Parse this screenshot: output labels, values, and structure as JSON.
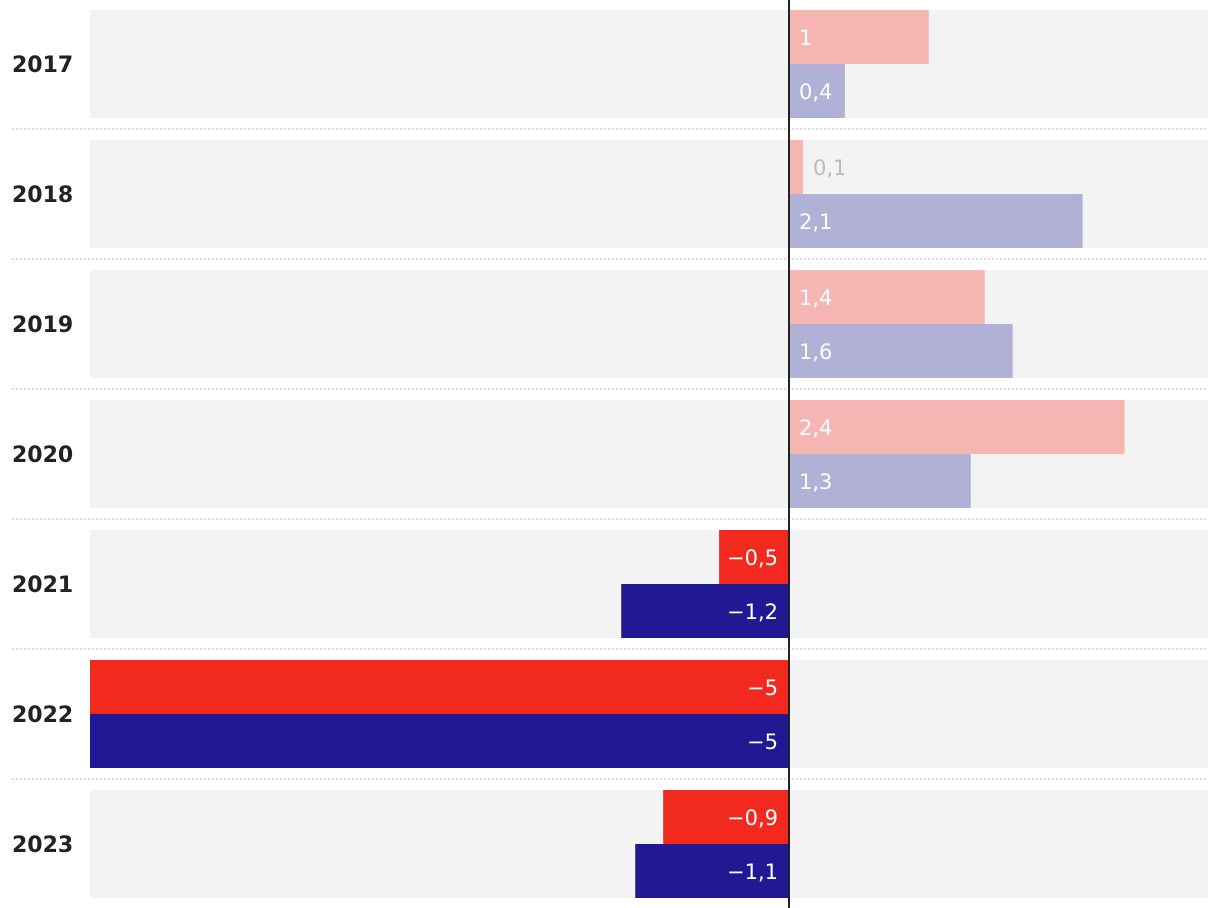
{
  "chart_data": {
    "type": "bar",
    "orientation": "horizontal",
    "categories": [
      "2017",
      "2018",
      "2019",
      "2020",
      "2021",
      "2022",
      "2023"
    ],
    "series": [
      {
        "values": [
          1,
          0.1,
          1.4,
          2.4,
          -0.5,
          -5,
          -0.9
        ],
        "labels": [
          "1",
          "0,1",
          "1,4",
          "2,4",
          "−0,5",
          "−5",
          "−0,9"
        ],
        "positive_color": "#f4b5b3",
        "negative_color": "#f2291f"
      },
      {
        "values": [
          0.4,
          2.1,
          1.6,
          1.3,
          -1.2,
          -5,
          -1.1
        ],
        "labels": [
          "0,4",
          "2,1",
          "1,6",
          "1,3",
          "−1,2",
          "−5",
          "−1,1"
        ],
        "positive_color": "#b1b0d6",
        "negative_color": "#201993"
      }
    ],
    "xlim": [
      -5,
      3
    ],
    "grid": false,
    "legend": "none",
    "colors": {
      "row_background": "#f3f3f3",
      "zero_line": "#222222",
      "separator": "#c8c8c8",
      "outside_label": "#bbbbbb"
    }
  }
}
